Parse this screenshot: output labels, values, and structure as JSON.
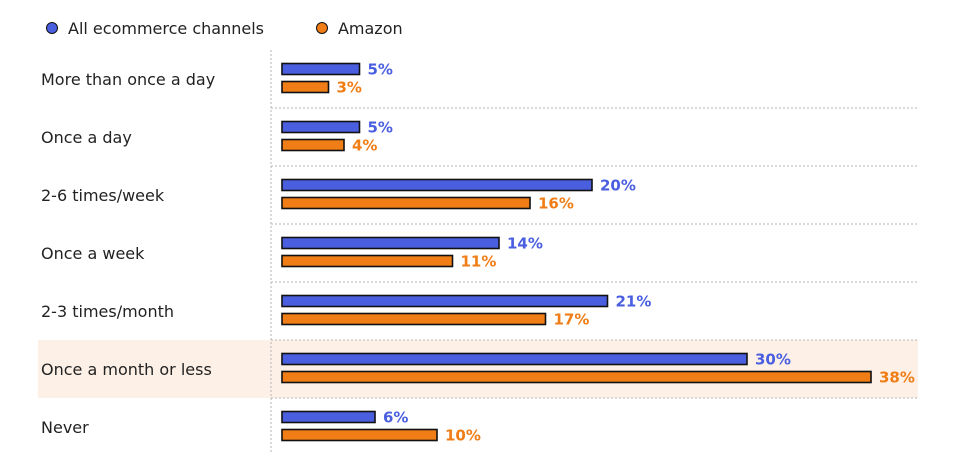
{
  "chart_data": {
    "type": "bar",
    "orientation": "horizontal",
    "categories": [
      "More than once a day",
      "Once a day",
      "2-6 times/week",
      "Once a week",
      "2-3 times/month",
      "Once a month or less",
      "Never"
    ],
    "series": [
      {
        "name": "All ecommerce channels",
        "color": "#4a5fe0",
        "values": [
          5,
          5,
          20,
          14,
          21,
          30,
          6
        ],
        "labels": [
          "5%",
          "5%",
          "20%",
          "14%",
          "21%",
          "30%",
          "6%"
        ]
      },
      {
        "name": "Amazon",
        "color": "#f07d15",
        "values": [
          3,
          4,
          16,
          11,
          17,
          38,
          10
        ],
        "labels": [
          "3%",
          "4%",
          "16%",
          "11%",
          "17%",
          "38%",
          "10%"
        ]
      }
    ],
    "highlight_category": "Once a month or less",
    "highlight_color": "#fdf0e6",
    "xlim": [
      0,
      38
    ],
    "grid": false,
    "legend": "top-left"
  }
}
